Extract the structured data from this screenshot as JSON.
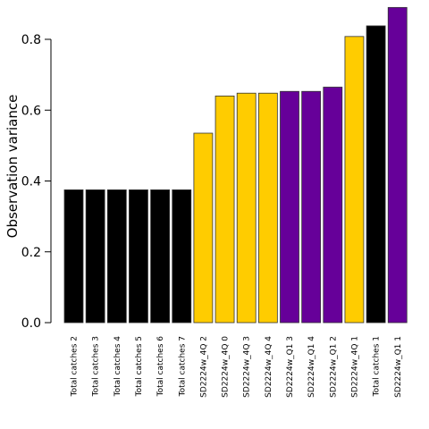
{
  "chart_data": {
    "type": "bar",
    "title": "",
    "xlabel": "",
    "ylabel": "Observation variance",
    "ylim": [
      0,
      0.9
    ],
    "yticks": [
      0.0,
      0.2,
      0.4,
      0.6,
      0.8
    ],
    "ytick_labels": [
      "0.0",
      "0.2",
      "0.4",
      "0.6",
      "0.8"
    ],
    "grid": false,
    "legend": "none",
    "colors": {
      "total_catches": "#000000",
      "SD2224w_4Q": "#FFCC00",
      "SD2224w_Q1": "#660099"
    },
    "bars": [
      {
        "category": "Total catches 2",
        "value": 0.375,
        "color": "#000000"
      },
      {
        "category": "Total catches 3",
        "value": 0.375,
        "color": "#000000"
      },
      {
        "category": "Total catches 4",
        "value": 0.375,
        "color": "#000000"
      },
      {
        "category": "Total catches 5",
        "value": 0.375,
        "color": "#000000"
      },
      {
        "category": "Total catches 6",
        "value": 0.375,
        "color": "#000000"
      },
      {
        "category": "Total catches 7",
        "value": 0.375,
        "color": "#000000"
      },
      {
        "category": "SD2224w_4Q 2",
        "value": 0.535,
        "color": "#FFCC00"
      },
      {
        "category": "SD2224w_4Q 0",
        "value": 0.64,
        "color": "#FFCC00"
      },
      {
        "category": "SD2224w_4Q 3",
        "value": 0.648,
        "color": "#FFCC00"
      },
      {
        "category": "SD2224w_4Q 4",
        "value": 0.648,
        "color": "#FFCC00"
      },
      {
        "category": "SD2224w_Q1 3",
        "value": 0.653,
        "color": "#660099"
      },
      {
        "category": "SD2224w_Q1 4",
        "value": 0.653,
        "color": "#660099"
      },
      {
        "category": "SD2224w_Q1 2",
        "value": 0.665,
        "color": "#660099"
      },
      {
        "category": "SD2224w_4Q 1",
        "value": 0.808,
        "color": "#FFCC00"
      },
      {
        "category": "Total catches 1",
        "value": 0.838,
        "color": "#000000"
      },
      {
        "category": "SD2224w_Q1 1",
        "value": 0.89,
        "color": "#660099"
      }
    ]
  }
}
